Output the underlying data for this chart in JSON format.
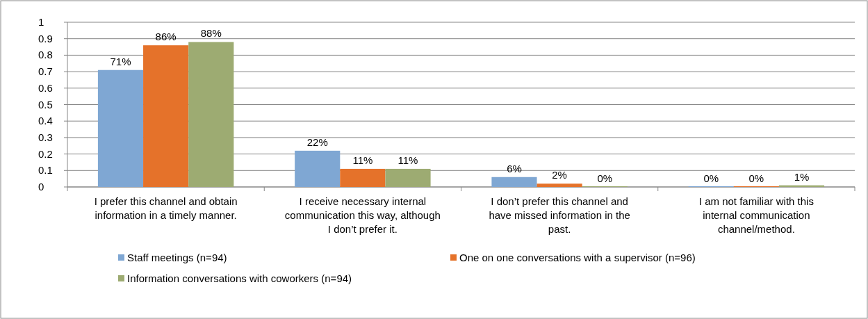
{
  "chart_data": {
    "type": "bar",
    "categories": [
      "I prefer this channel and obtain information in a timely manner.",
      "I receive necessary internal communication this way, although I don’t prefer it.",
      "I don’t prefer this channel and have missed information in the past.",
      "I am not familiar with this internal communication channel/method."
    ],
    "series": [
      {
        "name": "Staff meetings (n=94)",
        "color": "#7fa7d3",
        "values": [
          0.71,
          0.22,
          0.06,
          0
        ],
        "value_labels": [
          "71%",
          "22%",
          "6%",
          "0%"
        ]
      },
      {
        "name": "One on one conversations with a supervisor (n=96)",
        "color": "#e5722a",
        "values": [
          0.86,
          0.11,
          0.02,
          0
        ],
        "value_labels": [
          "86%",
          "11%",
          "2%",
          "0%"
        ]
      },
      {
        "name": "Information conversations with coworkers (n=94)",
        "color": "#9dab72",
        "values": [
          0.88,
          0.11,
          0,
          0.01
        ],
        "value_labels": [
          "88%",
          "11%",
          "0%",
          "1%"
        ]
      }
    ],
    "ylim": [
      0,
      1
    ],
    "yticks": [
      0,
      0.1,
      0.2,
      0.3,
      0.4,
      0.5,
      0.6,
      0.7,
      0.8,
      0.9,
      1
    ],
    "grid": "y",
    "legend": "bottom"
  }
}
